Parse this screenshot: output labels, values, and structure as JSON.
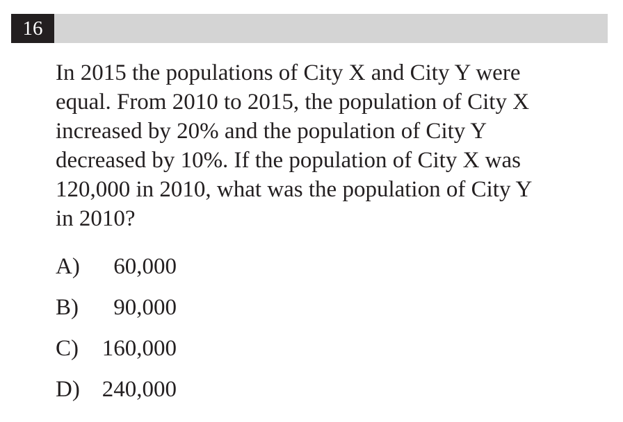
{
  "question": {
    "number": "16",
    "lines": [
      "In 2015 the populations of City X and City Y were",
      "equal. From 2010 to 2015, the population of City X",
      "increased by 20% and the population of City Y",
      "decreased by 10%. If the population of City X was",
      "120,000 in 2010, what was the population of City Y",
      "in 2010?"
    ]
  },
  "choices": [
    {
      "letter": "A)",
      "value": "60,000"
    },
    {
      "letter": "B)",
      "value": "90,000"
    },
    {
      "letter": "C)",
      "value": "160,000"
    },
    {
      "letter": "D)",
      "value": "240,000"
    }
  ]
}
